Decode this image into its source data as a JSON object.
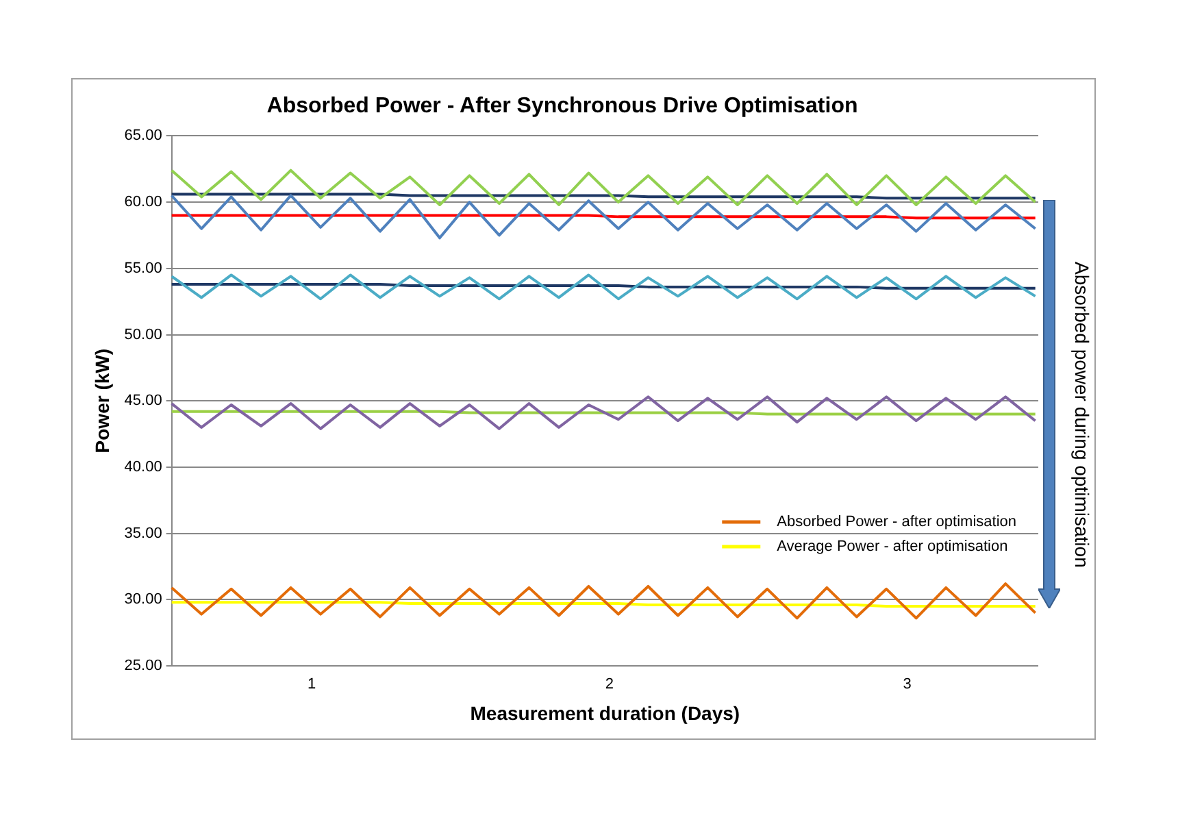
{
  "chart_data": {
    "type": "line",
    "title": "Absorbed Power - After Synchronous Drive Optimisation",
    "xlabel": "Measurement duration (Days)",
    "ylabel": "Power (kW)",
    "annotations": [
      "Absorbed power during optimisation"
    ],
    "x": [
      0.53,
      0.63,
      0.73,
      0.83,
      0.93,
      1.03,
      1.13,
      1.23,
      1.33,
      1.43,
      1.53,
      1.63,
      1.73,
      1.83,
      1.93,
      2.03,
      2.13,
      2.23,
      2.33,
      2.43,
      2.53,
      2.63,
      2.73,
      2.83,
      2.93,
      3.03,
      3.13,
      3.23,
      3.33,
      3.43
    ],
    "series": [
      {
        "color": "#92d050",
        "values": [
          62.4,
          60.4,
          62.3,
          60.2,
          62.4,
          60.3,
          62.2,
          60.3,
          61.9,
          59.8,
          62.0,
          59.9,
          62.1,
          59.8,
          62.2,
          60.0,
          62.0,
          59.9,
          61.9,
          59.8,
          62.0,
          59.9,
          62.1,
          59.8,
          62.0,
          59.8,
          61.9,
          59.9,
          62.0,
          60.0
        ]
      },
      {
        "color": "#4f81bd",
        "values": [
          60.5,
          58.0,
          60.4,
          57.9,
          60.5,
          58.1,
          60.3,
          57.8,
          60.2,
          57.3,
          60.0,
          57.5,
          59.9,
          57.9,
          60.1,
          58.0,
          60.0,
          57.9,
          59.9,
          58.0,
          59.8,
          57.9,
          59.9,
          58.0,
          59.8,
          57.8,
          59.9,
          57.9,
          59.8,
          58.0
        ]
      },
      {
        "color": "#1f3864",
        "values": [
          60.6,
          60.6,
          60.6,
          60.6,
          60.6,
          60.6,
          60.6,
          60.6,
          60.5,
          60.5,
          60.5,
          60.5,
          60.5,
          60.5,
          60.5,
          60.5,
          60.4,
          60.4,
          60.4,
          60.4,
          60.4,
          60.4,
          60.4,
          60.4,
          60.3,
          60.3,
          60.3,
          60.3,
          60.3,
          60.3
        ]
      },
      {
        "color": "#ff0000",
        "values": [
          59.0,
          59.0,
          59.0,
          59.0,
          59.0,
          59.0,
          59.0,
          59.0,
          59.0,
          59.0,
          59.0,
          59.0,
          59.0,
          59.0,
          59.0,
          58.9,
          58.9,
          58.9,
          58.9,
          58.9,
          58.9,
          58.9,
          58.9,
          58.9,
          58.9,
          58.8,
          58.8,
          58.8,
          58.8,
          58.8
        ]
      },
      {
        "color": "#4bacc6",
        "values": [
          54.4,
          52.8,
          54.5,
          52.9,
          54.4,
          52.7,
          54.5,
          52.8,
          54.4,
          52.9,
          54.3,
          52.7,
          54.4,
          52.8,
          54.5,
          52.7,
          54.3,
          52.9,
          54.4,
          52.8,
          54.3,
          52.7,
          54.4,
          52.8,
          54.3,
          52.7,
          54.4,
          52.8,
          54.3,
          52.9
        ]
      },
      {
        "color": "#1f3864",
        "values": [
          53.8,
          53.8,
          53.8,
          53.8,
          53.8,
          53.8,
          53.8,
          53.8,
          53.7,
          53.7,
          53.7,
          53.7,
          53.7,
          53.7,
          53.7,
          53.7,
          53.6,
          53.6,
          53.6,
          53.6,
          53.6,
          53.6,
          53.6,
          53.6,
          53.5,
          53.5,
          53.5,
          53.5,
          53.5,
          53.5
        ]
      },
      {
        "color": "#8064a2",
        "values": [
          44.8,
          43.0,
          44.7,
          43.1,
          44.8,
          42.9,
          44.7,
          43.0,
          44.8,
          43.1,
          44.7,
          42.9,
          44.8,
          43.0,
          44.7,
          43.6,
          45.3,
          43.5,
          45.2,
          43.6,
          45.3,
          43.4,
          45.2,
          43.6,
          45.3,
          43.5,
          45.2,
          43.6,
          45.3,
          43.5
        ]
      },
      {
        "color": "#9bd045",
        "values": [
          44.2,
          44.2,
          44.2,
          44.2,
          44.2,
          44.2,
          44.2,
          44.2,
          44.2,
          44.2,
          44.1,
          44.1,
          44.1,
          44.1,
          44.1,
          44.1,
          44.1,
          44.1,
          44.1,
          44.1,
          44.0,
          44.0,
          44.0,
          44.0,
          44.0,
          44.0,
          44.0,
          44.0,
          44.0,
          44.0
        ]
      },
      {
        "name": "Absorbed Power - after optimisation",
        "color": "#e36c09",
        "values": [
          30.9,
          28.9,
          30.8,
          28.8,
          30.9,
          28.9,
          30.8,
          28.7,
          30.9,
          28.8,
          30.8,
          28.9,
          30.9,
          28.8,
          31.0,
          28.9,
          31.0,
          28.8,
          30.9,
          28.7,
          30.8,
          28.6,
          30.9,
          28.7,
          30.8,
          28.6,
          30.9,
          28.8,
          31.2,
          29.0
        ]
      },
      {
        "name": "Average Power - after optimisation",
        "color": "#ffff00",
        "values": [
          29.8,
          29.8,
          29.8,
          29.8,
          29.8,
          29.8,
          29.8,
          29.8,
          29.7,
          29.7,
          29.7,
          29.7,
          29.7,
          29.7,
          29.7,
          29.7,
          29.6,
          29.6,
          29.6,
          29.6,
          29.6,
          29.6,
          29.6,
          29.6,
          29.5,
          29.5,
          29.5,
          29.5,
          29.5,
          29.5
        ]
      }
    ],
    "xlim": [
      0.53,
      3.44
    ],
    "xticks": [
      1,
      2,
      3
    ],
    "ylim": [
      25,
      65
    ],
    "yticks": [
      {
        "value": 25,
        "label": "25.00"
      },
      {
        "value": 30,
        "label": "30.00"
      },
      {
        "value": 35,
        "label": "35.00"
      },
      {
        "value": 40,
        "label": "40.00"
      },
      {
        "value": 45,
        "label": "45.00"
      },
      {
        "value": 50,
        "label": "50.00"
      },
      {
        "value": 55,
        "label": "55.00"
      },
      {
        "value": 60,
        "label": "60.00"
      },
      {
        "value": 65,
        "label": "65.00"
      }
    ],
    "grid": "y",
    "legend": "bottom right",
    "marker": "none",
    "line_style": "solid"
  }
}
